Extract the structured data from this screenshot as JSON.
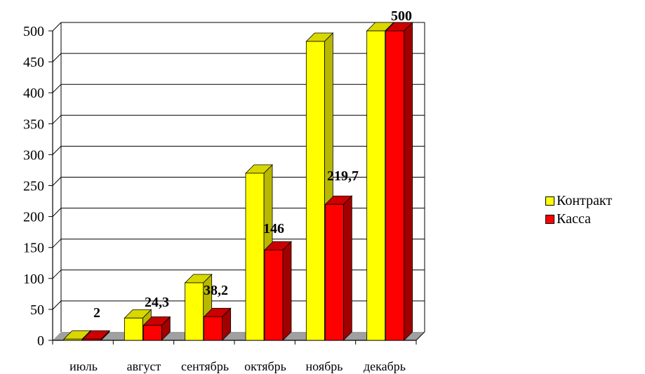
{
  "chart_data": {
    "type": "bar",
    "categories": [
      "июль",
      "август",
      "сентябрь",
      "октябрь",
      "ноябрь",
      "декабрь"
    ],
    "series": [
      {
        "name": "Контракт",
        "values": [
          2,
          36,
          93,
          270,
          483,
          500
        ],
        "color": "#ffff00",
        "side_color": "#b8b800",
        "top_color": "#d8d800"
      },
      {
        "name": "Касса",
        "values": [
          2,
          24.3,
          38.2,
          146,
          219.7,
          500
        ],
        "color": "#ff0000",
        "side_color": "#a00000",
        "top_color": "#cc0000"
      }
    ],
    "data_labels": [
      "2",
      "24,3",
      "38,2",
      "146",
      "219,7",
      "500"
    ],
    "yticks": [
      "0",
      "50",
      "100",
      "150",
      "200",
      "250",
      "300",
      "350",
      "400",
      "450",
      "500"
    ],
    "ylim": [
      0,
      500
    ],
    "grid": true,
    "three_d": true,
    "legend_position": "right",
    "title": "",
    "xlabel": "",
    "ylabel": ""
  }
}
